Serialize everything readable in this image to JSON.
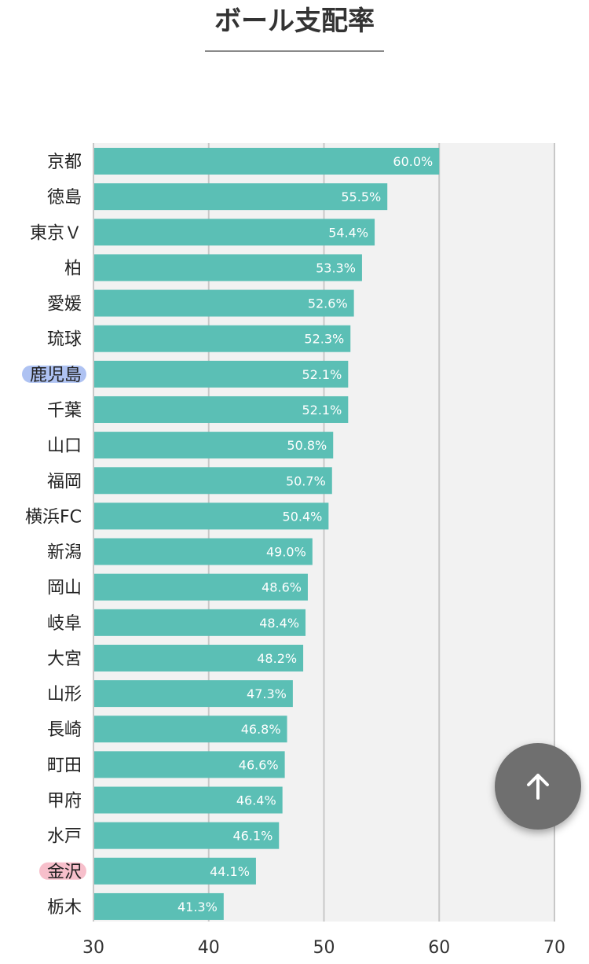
{
  "title": "ボール支配率",
  "chart_data": {
    "type": "bar",
    "orientation": "horizontal",
    "categories": [
      "京都",
      "徳島",
      "東京Ｖ",
      "柏",
      "愛媛",
      "琉球",
      "鹿児島",
      "千葉",
      "山口",
      "福岡",
      "横浜FC",
      "新潟",
      "岡山",
      "岐阜",
      "大宮",
      "山形",
      "長崎",
      "町田",
      "甲府",
      "水戸",
      "金沢",
      "栃木"
    ],
    "values": [
      60.0,
      55.5,
      54.4,
      53.3,
      52.6,
      52.3,
      52.1,
      52.1,
      50.8,
      50.7,
      50.4,
      49.0,
      48.6,
      48.4,
      48.2,
      47.3,
      46.8,
      46.6,
      46.4,
      46.1,
      44.1,
      41.3
    ],
    "value_labels": [
      "60.0%",
      "55.5%",
      "54.4%",
      "53.3%",
      "52.6%",
      "52.3%",
      "52.1%",
      "52.1%",
      "50.8%",
      "50.7%",
      "50.4%",
      "49.0%",
      "48.6%",
      "48.4%",
      "48.2%",
      "47.3%",
      "46.8%",
      "46.6%",
      "46.4%",
      "46.1%",
      "44.1%",
      "41.3%"
    ],
    "xlim": [
      30,
      70
    ],
    "x_ticks": [
      "30",
      "40",
      "50",
      "60",
      "70"
    ],
    "grid": true,
    "highlights": [
      {
        "category": "鹿児島",
        "color": "#6b8fe8"
      },
      {
        "category": "金沢",
        "color": "#f08aa0"
      }
    ],
    "bar_color": "#5bbfb5",
    "plot_background": "#f2f2f2",
    "grid_color": "#c8c8c8"
  },
  "scroll_top_button": {
    "icon": "arrow-up-icon"
  }
}
